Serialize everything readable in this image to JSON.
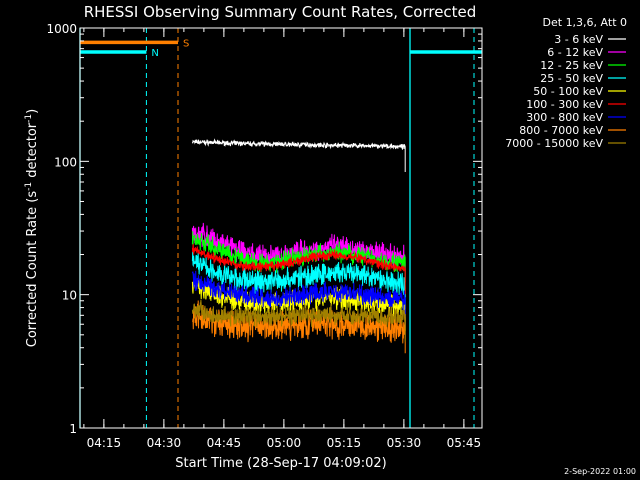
{
  "chart_data": {
    "type": "line",
    "title": "RHESSI Observing Summary Count Rates, Corrected",
    "xlabel": "Start Time (28-Sep-17 04:09:02)",
    "ylabel_main": "Corrected Count Rate (s",
    "ylabel_sup1": "-1",
    "ylabel_mid": " detector",
    "ylabel_sup2": "-1",
    "ylabel_end": ")",
    "yscale": "log",
    "ylim": [
      1,
      1000
    ],
    "xlim_minutes": [
      0,
      100.5
    ],
    "x_ticks": [
      {
        "label": "04:15",
        "minute": 5.97
      },
      {
        "label": "04:30",
        "minute": 20.97
      },
      {
        "label": "04:45",
        "minute": 35.97
      },
      {
        "label": "05:00",
        "minute": 50.97
      },
      {
        "label": "05:15",
        "minute": 65.97
      },
      {
        "label": "05:30",
        "minute": 80.97
      },
      {
        "label": "05:45",
        "minute": 95.97
      }
    ],
    "y_ticks": [
      {
        "label": "1",
        "value": 1
      },
      {
        "label": "10",
        "value": 10
      },
      {
        "label": "100",
        "value": 100
      },
      {
        "label": "1000",
        "value": 1000
      }
    ],
    "legend_header": "Det 1,3,6, Att 0",
    "legend_position": "right",
    "data_window_minutes": [
      28.1,
      81.3
    ],
    "series": [
      {
        "name": "3 - 6 keV",
        "color": "#ffffff",
        "base": [
          140,
          138,
          136,
          135,
          134,
          133,
          132,
          131,
          130,
          128
        ],
        "noise": 0.025
      },
      {
        "name": "6 - 12 keV",
        "color": "#ff00ff",
        "base": [
          30,
          25,
          21,
          19,
          20,
          22,
          23,
          22,
          20,
          19
        ],
        "noise": 0.12
      },
      {
        "name": "12 - 25 keV",
        "color": "#00ff00",
        "base": [
          27,
          22,
          19,
          17,
          18,
          20,
          21,
          20,
          18,
          17
        ],
        "noise": 0.1
      },
      {
        "name": "25 - 50 keV",
        "color": "#00ffff",
        "base": [
          18,
          14.5,
          13,
          12.5,
          13,
          14,
          14.5,
          14,
          13,
          12
        ],
        "noise": 0.12
      },
      {
        "name": "50 - 100 keV",
        "color": "#ffff00",
        "base": [
          12,
          10,
          9,
          8.5,
          8.8,
          9.3,
          9.5,
          9.2,
          8.6,
          8.2
        ],
        "noise": 0.12
      },
      {
        "name": "100 - 300 keV",
        "color": "#ff0000",
        "base": [
          22,
          18.5,
          16.5,
          16,
          17,
          19,
          20,
          19,
          17,
          15.5
        ],
        "noise": 0.05
      },
      {
        "name": "300 - 800 keV",
        "color": "#0000ff",
        "base": [
          13,
          11,
          10,
          9.3,
          9.5,
          10.2,
          10.5,
          10.2,
          9.5,
          9
        ],
        "noise": 0.1
      },
      {
        "name": "800 - 7000 keV",
        "color": "#ff8000",
        "base": [
          7,
          6.2,
          5.9,
          5.8,
          5.9,
          6,
          6.1,
          6,
          5.8,
          5.6
        ],
        "noise": 0.15
      },
      {
        "name": "7000 - 15000 keV",
        "color": "#a08000",
        "base": [
          8,
          7,
          6.8,
          6.8,
          6.9,
          7,
          7.1,
          7,
          6.9,
          6.8
        ],
        "noise": 0.1
      }
    ],
    "flags": [
      {
        "label": "S",
        "color": "#ff8000",
        "value": 780,
        "start": 0,
        "end": 24.5
      },
      {
        "label": "N",
        "color": "#00ffff",
        "value": 660,
        "start": 0,
        "end": 16.6
      },
      {
        "label": "",
        "color": "#00ffff",
        "value": 660,
        "start": 82.5,
        "end": 100.5
      }
    ],
    "solid_vlines": [
      {
        "minute": 0,
        "color": "#00ffff"
      },
      {
        "minute": 82.5,
        "color": "#00ffff"
      }
    ],
    "dashed_vlines": [
      {
        "minute": 16.6,
        "color": "#00ffff"
      },
      {
        "minute": 98.5,
        "color": "#00ffff"
      },
      {
        "minute": 24.5,
        "color": "#ff8000"
      }
    ]
  },
  "footer_date": "2-Sep-2022 01:00"
}
